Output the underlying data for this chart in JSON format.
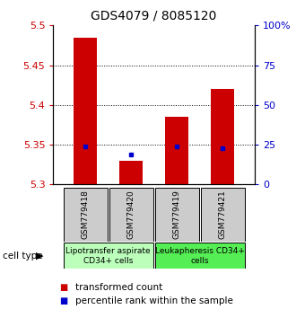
{
  "title": "GDS4079 / 8085120",
  "samples": [
    "GSM779418",
    "GSM779420",
    "GSM779419",
    "GSM779421"
  ],
  "transformed_counts": [
    5.485,
    5.33,
    5.385,
    5.42
  ],
  "percentile_ranks": [
    5.348,
    5.338,
    5.348,
    5.345
  ],
  "ylim": [
    5.3,
    5.5
  ],
  "yticks_left": [
    5.3,
    5.35,
    5.4,
    5.45,
    5.5
  ],
  "yticks_right": [
    0,
    25,
    50,
    75,
    100
  ],
  "yticks_right_labels": [
    "0",
    "25",
    "50",
    "75",
    "100%"
  ],
  "bar_color": "#cc0000",
  "dot_color": "#0000cc",
  "base_value": 5.3,
  "groups": [
    {
      "label": "Lipotransfer aspirate\nCD34+ cells",
      "color": "#bbffbb",
      "samples": [
        0,
        1
      ]
    },
    {
      "label": "Leukapheresis CD34+\ncells",
      "color": "#55ee55",
      "samples": [
        2,
        3
      ]
    }
  ],
  "legend_entries": [
    {
      "color": "#cc0000",
      "label": "transformed count"
    },
    {
      "color": "#0000cc",
      "label": "percentile rank within the sample"
    }
  ],
  "cell_type_label": "cell type",
  "left_label_color": "#cc0000",
  "right_label_color": "#0000cc",
  "sample_box_color": "#cccccc",
  "title_fontsize": 10,
  "tick_fontsize": 8,
  "sample_fontsize": 6.5,
  "group_fontsize": 6.5,
  "legend_fontsize": 7.5,
  "bar_width": 0.5
}
